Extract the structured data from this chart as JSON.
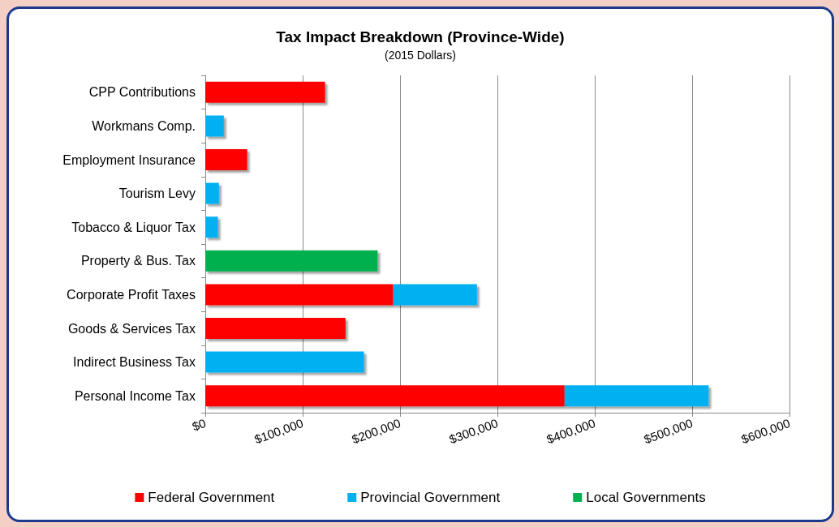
{
  "chart_data": {
    "type": "bar",
    "orientation": "horizontal",
    "stacked": true,
    "title": "Tax Impact Breakdown (Province-Wide)",
    "subtitle": "(2015 Dollars)",
    "categories": [
      "CPP Contributions",
      "Workmans Comp.",
      "Employment Insurance",
      "Tourism Levy",
      "Tobacco & Liquor Tax",
      "Property & Bus. Tax",
      "Corporate Profit Taxes",
      "Goods & Services Tax",
      "Indirect Business Tax",
      "Personal Income Tax"
    ],
    "series": [
      {
        "name": "Federal Government",
        "color": "#ff0000",
        "values": [
          123000,
          null,
          43000,
          null,
          null,
          null,
          193000,
          144000,
          null,
          369000
        ]
      },
      {
        "name": "Provincial Government",
        "color": "#00b0f0",
        "values": [
          null,
          19000,
          null,
          14000,
          13000,
          null,
          86000,
          null,
          163000,
          148000
        ]
      },
      {
        "name": "Local Governments",
        "color": "#00b050",
        "values": [
          null,
          null,
          null,
          null,
          null,
          177000,
          null,
          null,
          null,
          null
        ]
      }
    ],
    "xlim": [
      0,
      600000
    ],
    "xticks": [
      {
        "value": 0,
        "label": "$0"
      },
      {
        "value": 100000,
        "label": "$100,000"
      },
      {
        "value": 200000,
        "label": "$200,000"
      },
      {
        "value": 300000,
        "label": "$300,000"
      },
      {
        "value": 400000,
        "label": "$400,000"
      },
      {
        "value": 500000,
        "label": "$500,000"
      },
      {
        "value": 600000,
        "label": "$600,000"
      }
    ],
    "grid": "x",
    "legend": "bottom"
  }
}
